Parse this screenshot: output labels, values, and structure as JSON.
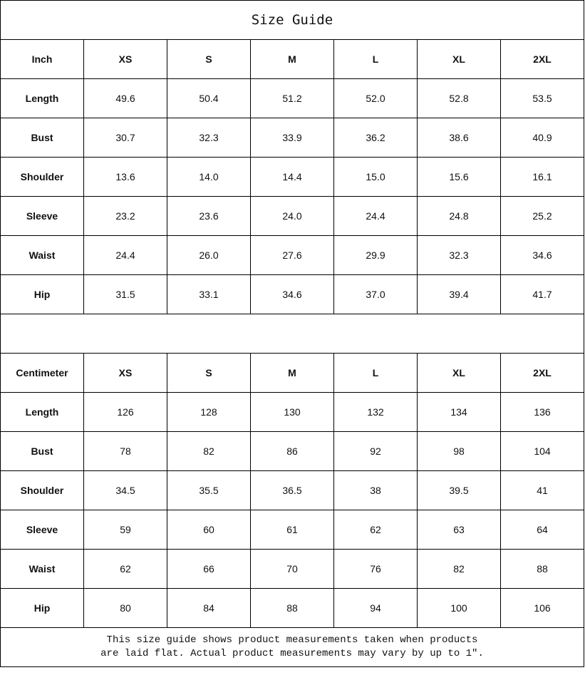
{
  "title": "Size Guide",
  "tables": [
    {
      "unit": "Inch",
      "sizes": [
        "XS",
        "S",
        "M",
        "L",
        "XL",
        "2XL"
      ],
      "rows": [
        {
          "label": "Length",
          "values": [
            "49.6",
            "50.4",
            "51.2",
            "52.0",
            "52.8",
            "53.5"
          ]
        },
        {
          "label": "Bust",
          "values": [
            "30.7",
            "32.3",
            "33.9",
            "36.2",
            "38.6",
            "40.9"
          ]
        },
        {
          "label": "Shoulder",
          "values": [
            "13.6",
            "14.0",
            "14.4",
            "15.0",
            "15.6",
            "16.1"
          ]
        },
        {
          "label": "Sleeve",
          "values": [
            "23.2",
            "23.6",
            "24.0",
            "24.4",
            "24.8",
            "25.2"
          ]
        },
        {
          "label": "Waist",
          "values": [
            "24.4",
            "26.0",
            "27.6",
            "29.9",
            "32.3",
            "34.6"
          ]
        },
        {
          "label": "Hip",
          "values": [
            "31.5",
            "33.1",
            "34.6",
            "37.0",
            "39.4",
            "41.7"
          ]
        }
      ]
    },
    {
      "unit": "Centimeter",
      "sizes": [
        "XS",
        "S",
        "M",
        "L",
        "XL",
        "2XL"
      ],
      "rows": [
        {
          "label": "Length",
          "values": [
            "126",
            "128",
            "130",
            "132",
            "134",
            "136"
          ]
        },
        {
          "label": "Bust",
          "values": [
            "78",
            "82",
            "86",
            "92",
            "98",
            "104"
          ]
        },
        {
          "label": "Shoulder",
          "values": [
            "34.5",
            "35.5",
            "36.5",
            "38",
            "39.5",
            "41"
          ]
        },
        {
          "label": "Sleeve",
          "values": [
            "59",
            "60",
            "61",
            "62",
            "63",
            "64"
          ]
        },
        {
          "label": "Waist",
          "values": [
            "62",
            "66",
            "70",
            "76",
            "82",
            "88"
          ]
        },
        {
          "label": "Hip",
          "values": [
            "80",
            "84",
            "88",
            "94",
            "100",
            "106"
          ]
        }
      ]
    }
  ],
  "note_line1": "This size guide shows product measurements taken when products",
  "note_line2": "are laid flat. Actual product measurements may vary by up to 1″."
}
